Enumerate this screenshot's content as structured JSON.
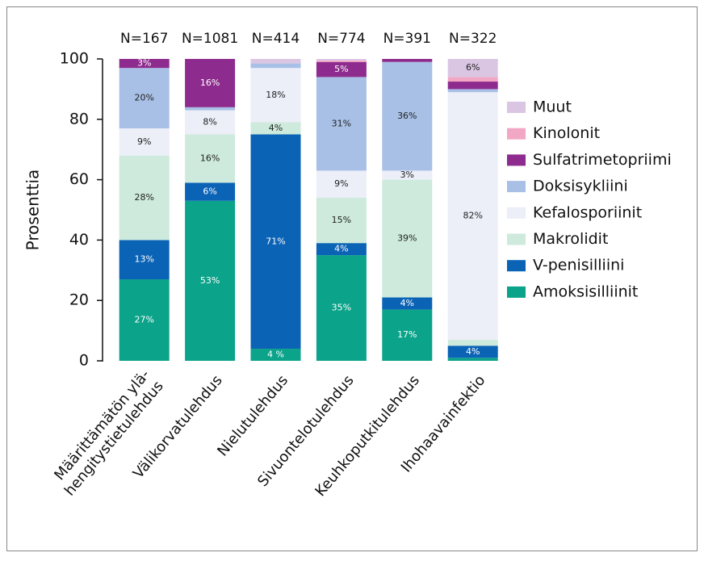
{
  "chart_data": {
    "type": "stacked_bar",
    "categories": [
      "Määrittämätön ylä-\nhengitystietulehdus",
      "Välikorvatulehdus",
      "Nielutulehdus",
      "Sivuontelotulehdus",
      "Keuhkoputkitulehdus",
      "Ihohaavainfektio"
    ],
    "annotations": [
      "N=167",
      "N=1081",
      "N=414",
      "N=774",
      "N=391",
      "N=322"
    ],
    "y_label": "Prosenttia",
    "ylim": [
      0,
      100
    ],
    "yticks": [
      0,
      20,
      40,
      60,
      80,
      100
    ],
    "series": [
      {
        "name": "Amoksisilliinit",
        "color": "#0ba38a",
        "values": [
          27,
          53,
          4,
          35,
          17,
          1
        ],
        "value_labels": [
          "27%",
          "53%",
          "4 %",
          "35%",
          "17%",
          null
        ]
      },
      {
        "name": "V-penisilliini",
        "color": "#0b63b6",
        "values": [
          13,
          6,
          71,
          4,
          4,
          4
        ],
        "value_labels": [
          "13%",
          "6%",
          "71%",
          "4%",
          "4%",
          "4%"
        ]
      },
      {
        "name": "Makrolidit",
        "color": "#cdeadc",
        "values": [
          28,
          16,
          4,
          15,
          39,
          2
        ],
        "value_labels": [
          "28%",
          "16%",
          "4%",
          "15%",
          "39%",
          null
        ]
      },
      {
        "name": "Kefalosporiinit",
        "color": "#eceef8",
        "values": [
          9,
          8,
          18,
          9,
          3,
          82
        ],
        "value_labels": [
          "9%",
          "8%",
          "18%",
          "9%",
          "3%",
          "82%"
        ]
      },
      {
        "name": "Doksisykliini",
        "color": "#a8c0e6",
        "values": [
          20,
          1,
          1.5,
          31,
          36,
          1
        ],
        "value_labels": [
          "20%",
          null,
          null,
          "31%",
          "36%",
          null
        ]
      },
      {
        "name": "Sulfatrimetopriimi",
        "color": "#8e2b8e",
        "values": [
          3,
          16,
          0,
          5,
          1,
          2.5
        ],
        "value_labels": [
          "3%",
          "16%",
          null,
          "5%",
          null,
          null
        ]
      },
      {
        "name": "Kinolonit",
        "color": "#f2a8c4",
        "values": [
          0,
          0,
          0,
          0.5,
          0,
          1.5
        ],
        "value_labels": [
          null,
          null,
          null,
          null,
          null,
          null
        ]
      },
      {
        "name": "Muut",
        "color": "#dac6e3",
        "values": [
          0,
          0,
          1.5,
          0.5,
          0,
          6
        ],
        "value_labels": [
          null,
          null,
          null,
          null,
          null,
          "6%"
        ]
      }
    ]
  }
}
